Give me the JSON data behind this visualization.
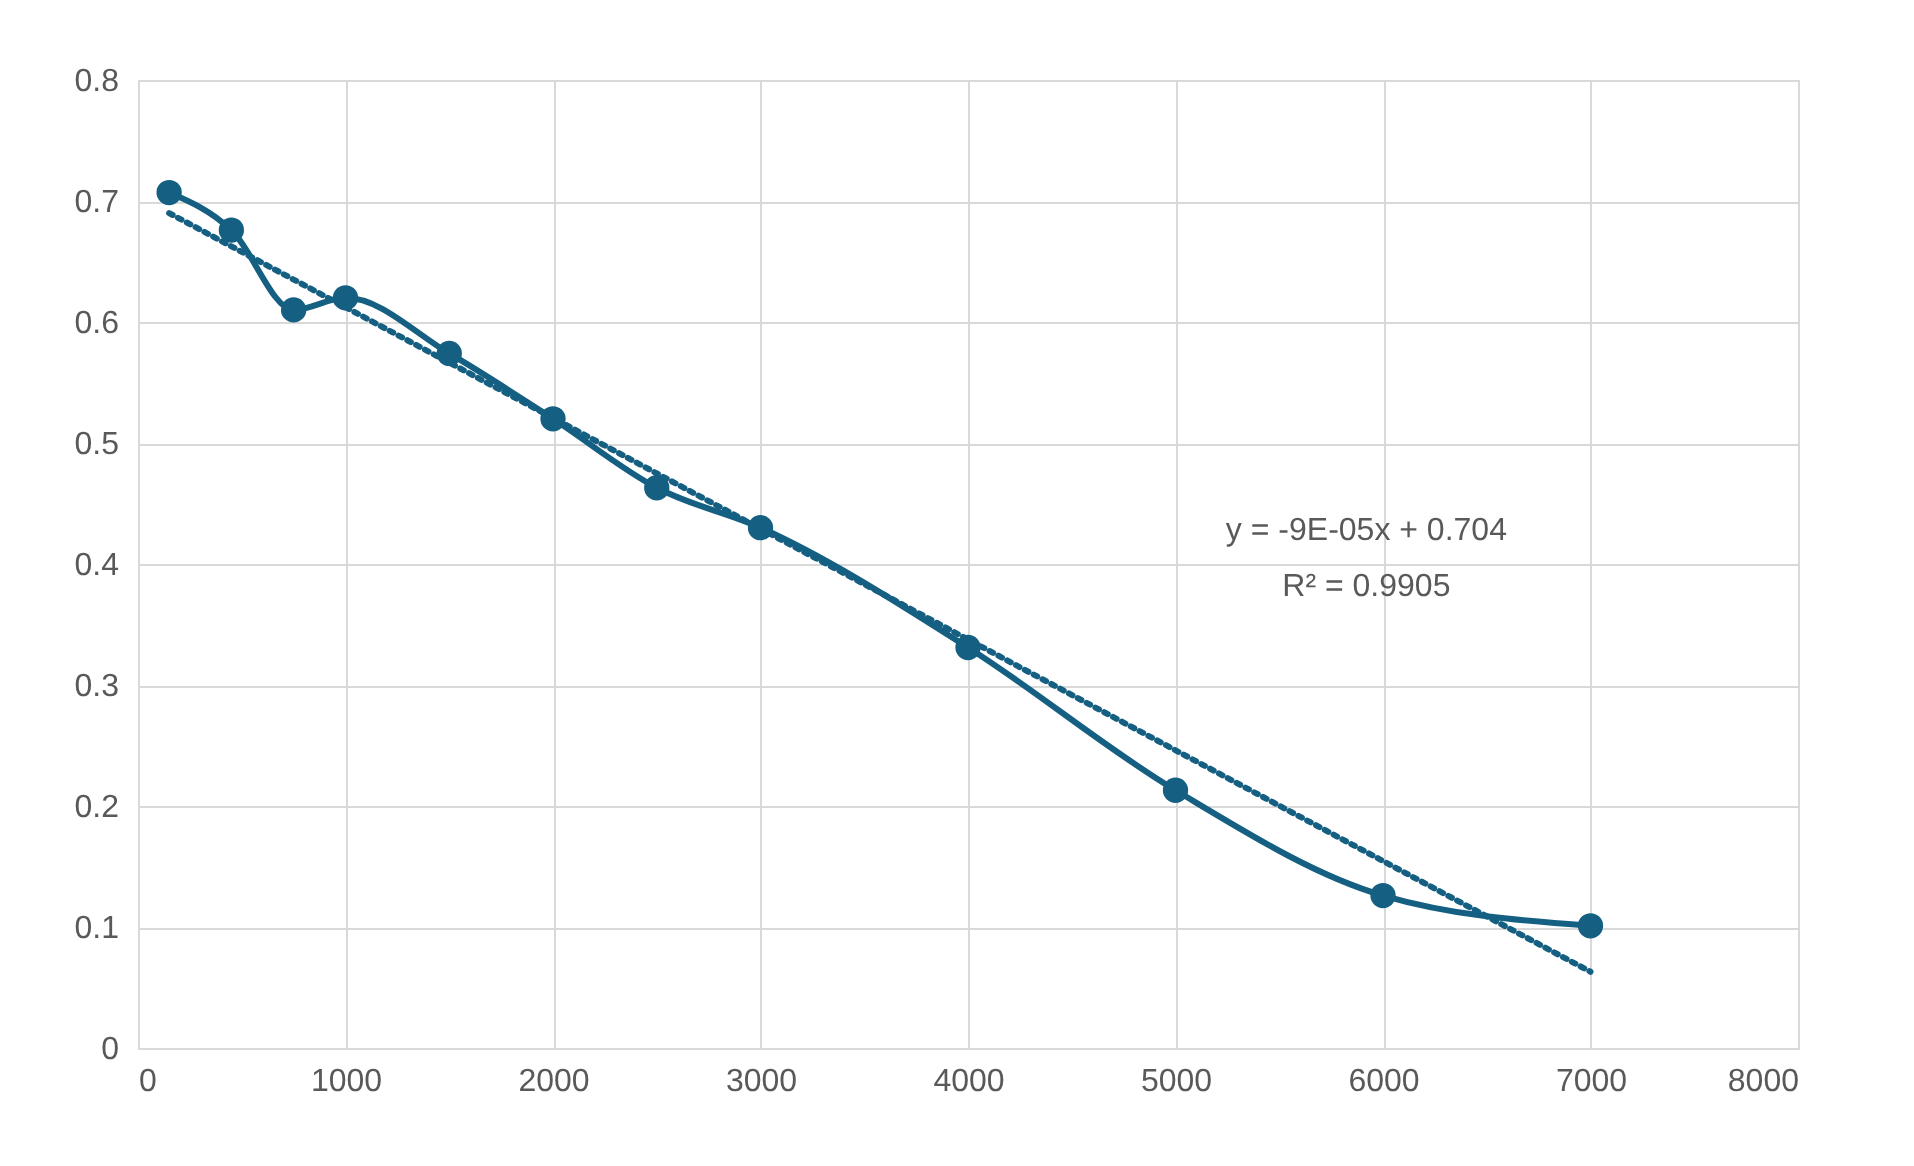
{
  "chart_data": {
    "type": "line",
    "xlim": [
      0,
      8000
    ],
    "xticks": [
      0,
      1000,
      2000,
      3000,
      4000,
      5000,
      6000,
      7000,
      8000
    ],
    "ylim": [
      0,
      0.8
    ],
    "yticks": [
      0,
      0.1,
      0.2,
      0.3,
      0.4,
      0.5,
      0.6,
      0.7,
      0.8
    ],
    "grid": true,
    "marker": "circle",
    "series": [
      {
        "color": "#156082",
        "x": [
          150,
          450,
          750,
          1000,
          1500,
          2000,
          2500,
          3000,
          4000,
          5000,
          6000,
          7000
        ],
        "values": [
          0.707,
          0.676,
          0.61,
          0.62,
          0.574,
          0.52,
          0.463,
          0.43,
          0.331,
          0.213,
          0.126,
          0.101
        ],
        "line_style": "solid"
      },
      {
        "color": "#156082",
        "x": [
          150,
          7000
        ],
        "values": [
          0.69,
          0.063
        ],
        "line_style": "dotted",
        "marker": "none"
      }
    ],
    "annotations": [
      "y = -9E-05x + 0.704",
      "R² = 0.9905"
    ]
  }
}
